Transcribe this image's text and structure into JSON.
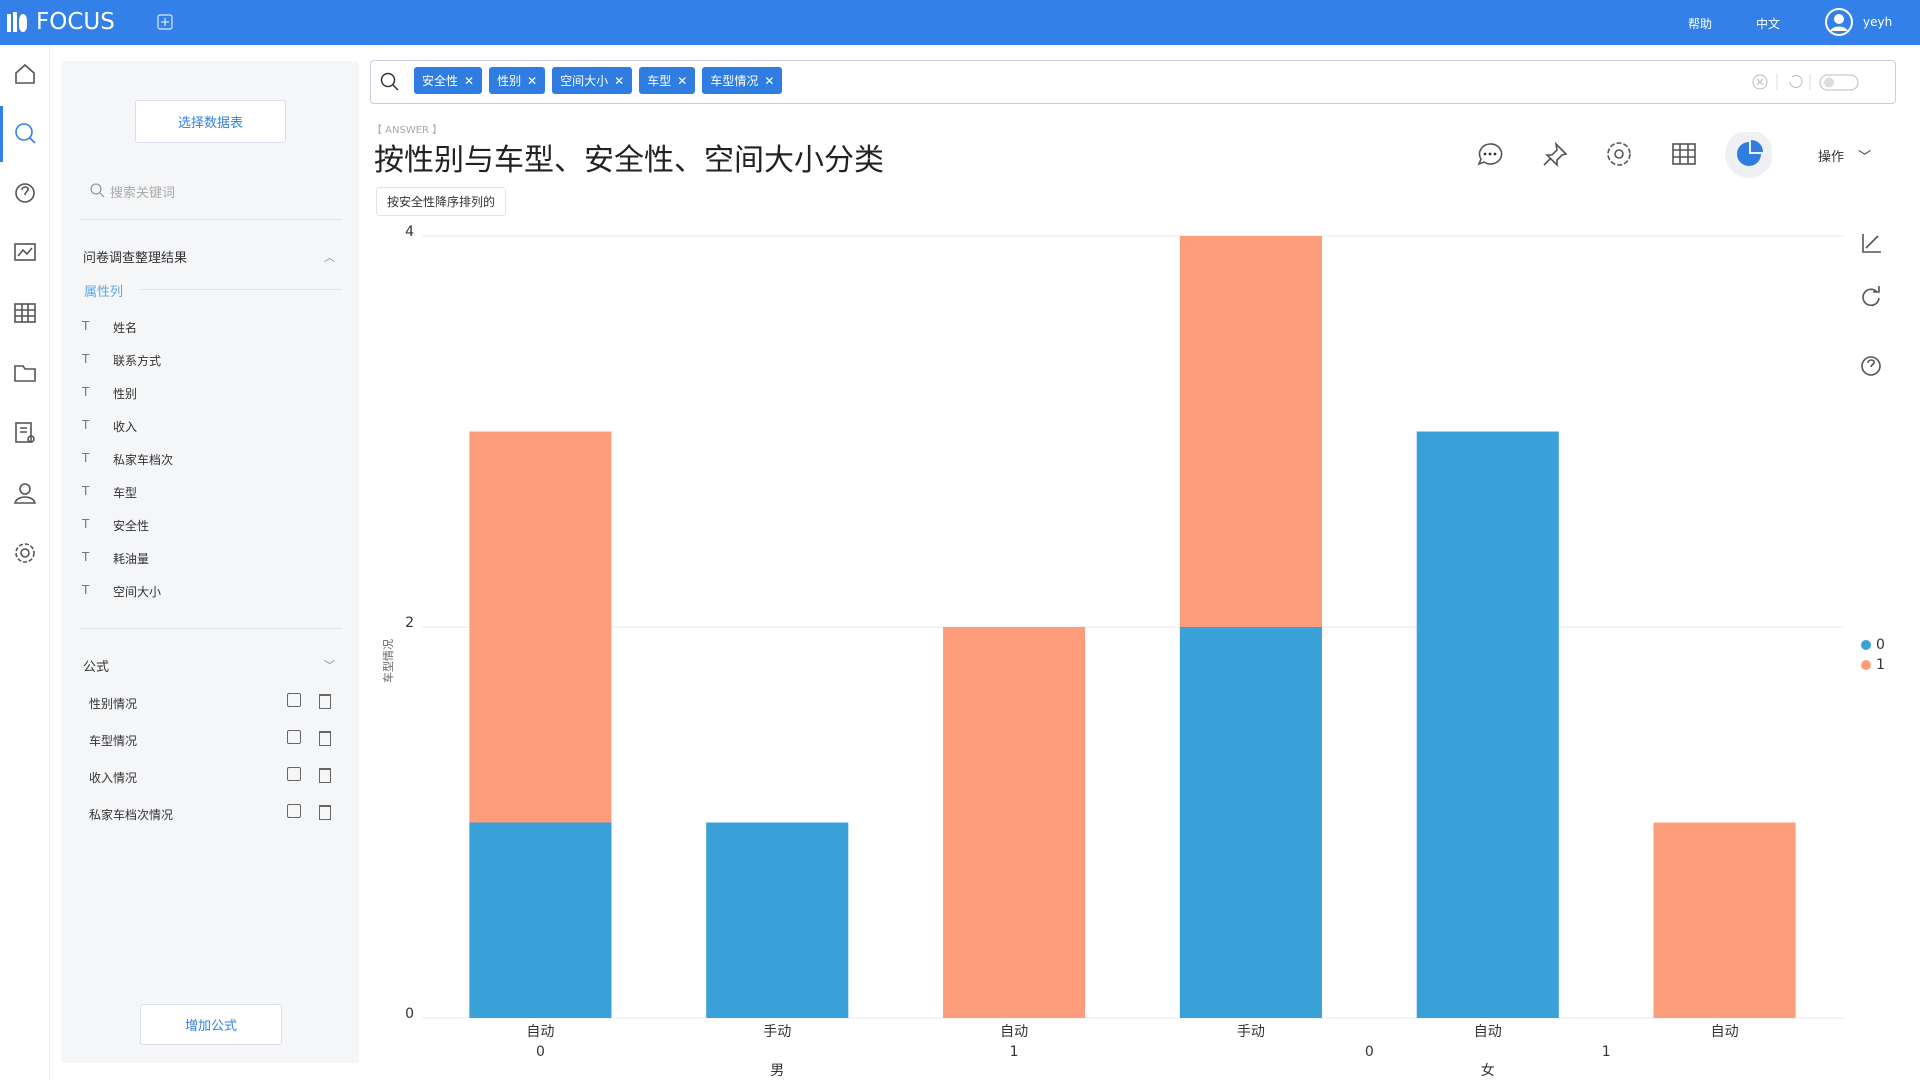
{
  "header": {
    "logo": "FOCUS",
    "help": "帮助",
    "language": "中文",
    "user": "yeyh"
  },
  "sidebar": {
    "select_table": "选择数据表",
    "search_placeholder": "搜索关键词",
    "dataset": "问卷调查整理结果",
    "attribute_tab": "属性列",
    "columns": [
      "姓名",
      "联系方式",
      "性别",
      "收入",
      "私家车档次",
      "车型",
      "安全性",
      "耗油量",
      "空间大小"
    ],
    "formula_title": "公式",
    "formulas": [
      "性别情况",
      "车型情况",
      "收入情况",
      "私家车档次情况"
    ],
    "add_formula": "增加公式"
  },
  "search": {
    "tokens": [
      "安全性",
      "性别",
      "空间大小",
      "车型",
      "车型情况"
    ]
  },
  "answer": {
    "tag": "【 ANSWER 】",
    "title": "按性别与车型、安全性、空间大小分类",
    "sort_note": "按安全性降序排列的",
    "actions": "操作"
  },
  "chart_data": {
    "type": "stacked_bar",
    "categories": [
      "自动",
      "手动",
      "自动",
      "手动",
      "自动",
      "自动"
    ],
    "x_level2": [
      {
        "label": "0",
        "first": 0,
        "last": 0
      },
      {
        "label": "1",
        "first": 2,
        "last": 2
      },
      {
        "label": "0",
        "first": 3,
        "last": 4
      },
      {
        "label": "1",
        "first": 4,
        "last": 5
      }
    ],
    "x_level3": [
      {
        "label": "男",
        "first": 0,
        "last": 2
      },
      {
        "label": "女",
        "first": 3,
        "last": 5
      }
    ],
    "y_label": "车型情况",
    "series": [
      {
        "name": "0",
        "color": "#3aa1d8",
        "values": [
          1,
          1,
          0,
          2,
          3,
          0
        ]
      },
      {
        "name": "1",
        "color": "#fe9d7b",
        "values": [
          2,
          0,
          2,
          2,
          0,
          1
        ]
      }
    ],
    "ylim": [
      0,
      4
    ],
    "yticks": [
      0,
      2,
      4
    ],
    "grid": true,
    "legend": "right"
  }
}
